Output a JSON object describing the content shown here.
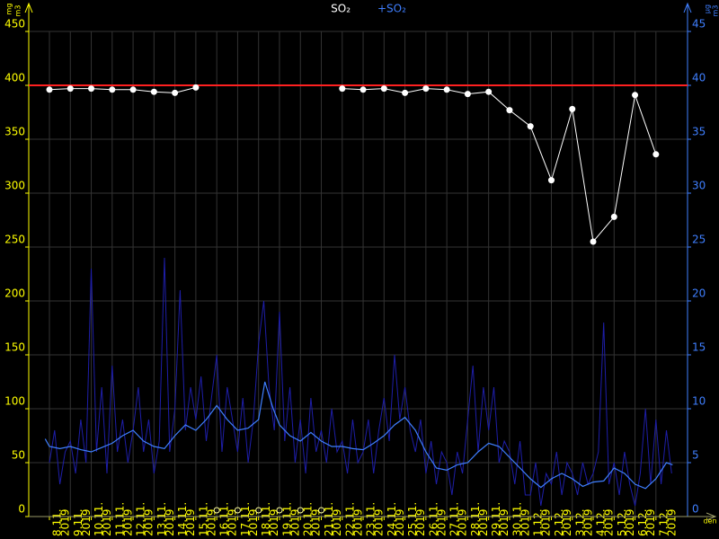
{
  "chart_data": {
    "type": "line",
    "categories": [
      "8.11.",
      "9.11.",
      "10.11.",
      "11.11.",
      "12.11.",
      "13.11.",
      "14.11.",
      "15.11.",
      "16.11.",
      "17.11.",
      "18.11.",
      "19.11.",
      "20.11.",
      "21.11.",
      "22.11.",
      "23.11.",
      "24.11.",
      "25.11.",
      "26.11.",
      "27.11.",
      "28.11.",
      "29.11.",
      "30.11.",
      "1.12.",
      "2.12.",
      "3.12.",
      "4.12.",
      "5.12.",
      "6.12.",
      "7.12."
    ],
    "year": "2019",
    "xlabel": "den",
    "ylabel": {
      "top": "mg",
      "bottom": "m3"
    },
    "y2label": {
      "top": "µg",
      "bottom": "m3"
    },
    "ylim": [
      0,
      450
    ],
    "yticks": [
      0,
      50,
      100,
      150,
      200,
      250,
      300,
      350,
      400,
      450
    ],
    "y2lim": [
      0,
      45
    ],
    "y2ticks": [
      0,
      5,
      10,
      15,
      20,
      25,
      30,
      35,
      40,
      45
    ],
    "limit": {
      "value": 400,
      "color": "#ff2020"
    },
    "grid": true,
    "series": [
      {
        "name": "SO₂",
        "color": "#ffffff",
        "values": [
          396,
          397,
          397,
          396,
          396,
          394,
          393,
          398,
          null,
          null,
          null,
          null,
          null,
          null,
          397,
          396,
          397,
          393,
          397,
          396,
          392,
          394,
          377,
          362,
          312,
          378,
          255,
          278,
          391,
          336
        ]
      },
      {
        "name": "+SO₂",
        "color": "#1e1ea8",
        "axis": "y2",
        "x": [
          0,
          0.25,
          0.5,
          0.75,
          1,
          1.25,
          1.5,
          1.75,
          2,
          2.25,
          2.5,
          2.75,
          3,
          3.25,
          3.5,
          3.75,
          4,
          4.25,
          4.5,
          4.75,
          5,
          5.25,
          5.5,
          5.75,
          6,
          6.25,
          6.5,
          6.75,
          7,
          7.25,
          7.5,
          7.75,
          8,
          8.25,
          8.5,
          8.75,
          9,
          9.25,
          9.5,
          9.75,
          10,
          10.25,
          10.5,
          10.75,
          11,
          11.25,
          11.5,
          11.75,
          12,
          12.25,
          12.5,
          12.75,
          13,
          13.25,
          13.5,
          13.75,
          14,
          14.25,
          14.5,
          14.75,
          15,
          15.25,
          15.5,
          15.75,
          16,
          16.25,
          16.5,
          16.75,
          17,
          17.25,
          17.5,
          17.75,
          18,
          18.25,
          18.5,
          18.75,
          19,
          19.25,
          19.5,
          19.75,
          20,
          20.25,
          20.5,
          20.75,
          21,
          21.25,
          21.5,
          21.75,
          22,
          22.25,
          22.5,
          22.75,
          23,
          23.25,
          23.5,
          23.75,
          24,
          24.25,
          24.5,
          24.75,
          25,
          25.25,
          25.5,
          25.75,
          26,
          26.25,
          26.5,
          26.75,
          27,
          27.25,
          27.5,
          27.75,
          28,
          28.25,
          28.5,
          28.75,
          29,
          29.25,
          29.5,
          29.75
        ],
        "values": [
          5,
          8,
          3,
          6,
          7,
          4,
          9,
          5,
          23,
          6,
          12,
          4,
          14,
          6,
          9,
          5,
          8,
          12,
          6,
          9,
          4,
          7,
          24,
          6,
          10,
          21,
          8,
          12,
          9,
          13,
          7,
          11,
          15,
          6,
          12,
          9,
          6,
          11,
          5,
          9,
          16,
          20,
          12,
          8,
          19,
          7,
          12,
          5,
          9,
          4,
          11,
          6,
          8,
          5,
          10,
          6,
          7,
          4,
          9,
          5,
          6,
          9,
          4,
          8,
          11,
          7,
          15,
          9,
          12,
          8,
          6,
          9,
          4,
          7,
          3,
          6,
          5,
          2,
          6,
          4,
          9,
          14,
          6,
          12,
          8,
          12,
          5,
          7,
          6,
          3,
          7,
          2,
          2,
          5,
          1,
          4,
          3,
          6,
          2,
          5,
          4,
          2,
          5,
          3,
          4,
          6,
          18,
          3,
          5,
          2,
          6,
          3,
          1,
          4,
          10,
          3,
          9,
          3,
          8,
          4
        ]
      },
      {
        "color": "#3f7fff",
        "axis": "y2",
        "x": [
          -0.2,
          0,
          0.5,
          1,
          1.5,
          2,
          2.5,
          3,
          3.5,
          4,
          4.5,
          5,
          5.5,
          6,
          6.5,
          7,
          7.5,
          8,
          8.5,
          9,
          9.5,
          10,
          10.3,
          10.7,
          11,
          11.5,
          12,
          12.5,
          13,
          13.5,
          14,
          14.5,
          15,
          15.5,
          16,
          16.5,
          17,
          17.5,
          18,
          18.5,
          19,
          19.5,
          20,
          20.5,
          21,
          21.5,
          22,
          22.5,
          23,
          23.5,
          24,
          24.5,
          25,
          25.5,
          26,
          26.5,
          27,
          27.5,
          28,
          28.5,
          29,
          29.5,
          29.8
        ],
        "values": [
          7.2,
          6.5,
          6.3,
          6.5,
          6.2,
          6.0,
          6.4,
          6.8,
          7.5,
          8.0,
          7.0,
          6.5,
          6.3,
          7.5,
          8.5,
          8,
          9,
          10.3,
          9,
          8,
          8.2,
          9,
          12.5,
          10,
          8.5,
          7.5,
          7,
          7.8,
          7,
          6.5,
          6.5,
          6.3,
          6.2,
          6.8,
          7.5,
          8.5,
          9.2,
          8,
          6,
          4.5,
          4.3,
          4.8,
          5,
          6,
          6.8,
          6.5,
          5.5,
          4.5,
          3.5,
          2.7,
          3.5,
          4,
          3.5,
          2.8,
          3.2,
          3.3,
          4.5,
          4,
          3.0,
          2.6,
          3.5,
          5,
          4.8
        ]
      }
    ]
  }
}
